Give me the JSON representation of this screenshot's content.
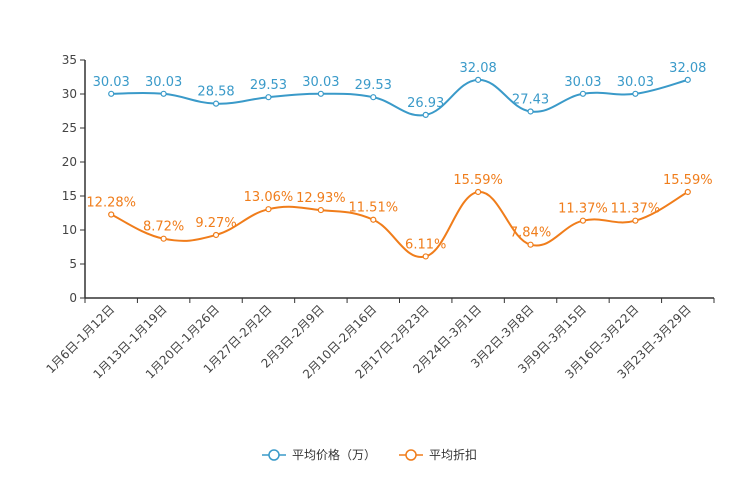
{
  "chart_data": {
    "type": "line",
    "title": "",
    "xlabel": "",
    "ylabel": "",
    "ylim": [
      0,
      35
    ],
    "yticks": [
      0,
      5,
      10,
      15,
      20,
      25,
      30,
      35
    ],
    "categories": [
      "1月6日-1月12日",
      "1月13日-1月19日",
      "1月20日-1月26日",
      "1月27日-2月2日",
      "2月3日-2月9日",
      "2月10日-2月16日",
      "2月17日-2月23日",
      "2月24日-3月1日",
      "3月2日-3月8日",
      "3月9日-3月15日",
      "3月16日-3月22日",
      "3月23日-3月29日"
    ],
    "series": [
      {
        "name": "平均价格（万）",
        "color": "#3a9ac9",
        "values": [
          30.03,
          30.03,
          28.58,
          29.53,
          30.03,
          29.53,
          26.93,
          32.08,
          27.43,
          30.03,
          30.03,
          32.08
        ],
        "labels": [
          "30.03",
          "30.03",
          "28.58",
          "29.53",
          "30.03",
          "29.53",
          "26.93",
          "32.08",
          "27.43",
          "30.03",
          "30.03",
          "32.08"
        ]
      },
      {
        "name": "平均折扣",
        "color": "#f07d1b",
        "values": [
          12.28,
          8.72,
          9.27,
          13.06,
          12.93,
          11.51,
          6.11,
          15.59,
          7.84,
          11.37,
          11.37,
          15.59
        ],
        "labels": [
          "12.28%",
          "8.72%",
          "9.27%",
          "13.06%",
          "12.93%",
          "11.51%",
          "6.11%",
          "15.59%",
          "7.84%",
          "11.37%",
          "11.37%",
          "15.59%"
        ]
      }
    ],
    "legend_position": "bottom"
  }
}
